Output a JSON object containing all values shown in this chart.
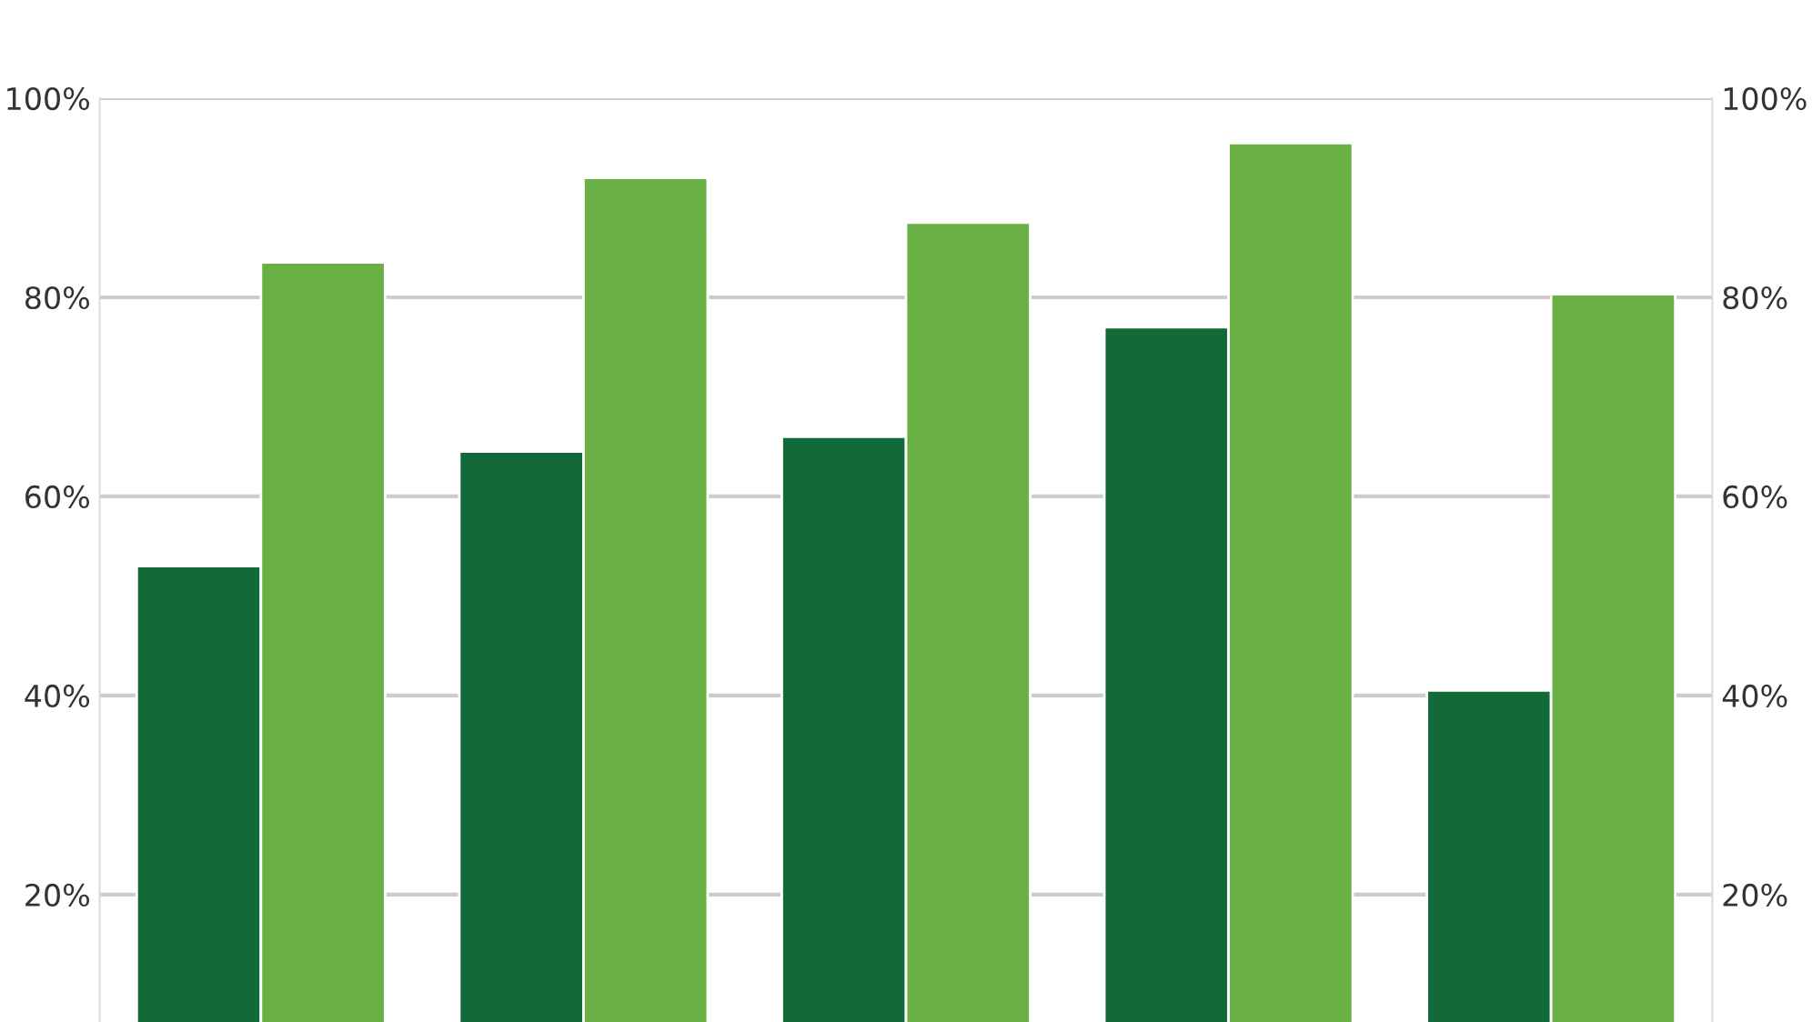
{
  "chart_data": {
    "type": "bar",
    "categories": [
      null,
      null,
      null,
      null,
      null
    ],
    "series": [
      {
        "color": "#126a38",
        "values": [
          53,
          64.5,
          66,
          77,
          40.5
        ]
      },
      {
        "color": "#69b045",
        "values": [
          83.5,
          92,
          87.5,
          95.5,
          80.3
        ]
      }
    ],
    "ylim": [
      7.2,
      100
    ],
    "yticks": [
      {
        "value": 20,
        "label": "20%"
      },
      {
        "value": 40,
        "label": "40%"
      },
      {
        "value": 60,
        "label": "60%"
      },
      {
        "value": 80,
        "label": "80%"
      },
      {
        "value": 100,
        "label": "100%"
      }
    ],
    "y2lim": [
      7.2,
      100
    ],
    "y2ticks": [
      {
        "value": 20,
        "label": "20%"
      },
      {
        "value": 40,
        "label": "40%"
      },
      {
        "value": 60,
        "label": "60%"
      },
      {
        "value": 80,
        "label": "80%"
      },
      {
        "value": 100,
        "label": "100%"
      }
    ],
    "grid": "y"
  }
}
